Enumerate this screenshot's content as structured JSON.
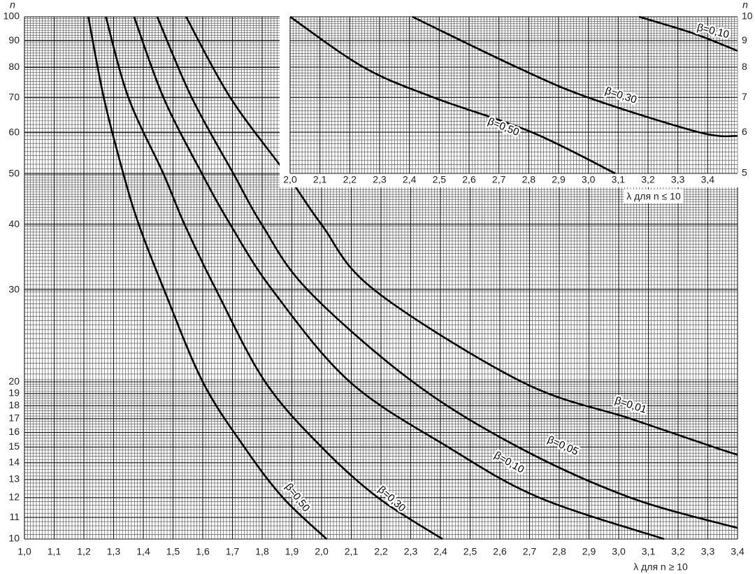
{
  "chart_data": [
    {
      "type": "line",
      "log_y": true,
      "grid": true,
      "y_label": "n",
      "x_label": "λ для n ≥ 10",
      "xlim": [
        1.0,
        3.4
      ],
      "ylim": [
        10,
        100
      ],
      "xticks": [
        {
          "value": 1.0,
          "label": "1,0"
        },
        {
          "value": 1.1,
          "label": "1,1"
        },
        {
          "value": 1.2,
          "label": "1,2"
        },
        {
          "value": 1.3,
          "label": "1,3"
        },
        {
          "value": 1.4,
          "label": "1,4"
        },
        {
          "value": 1.5,
          "label": "1,5"
        },
        {
          "value": 1.6,
          "label": "1,6"
        },
        {
          "value": 1.7,
          "label": "1,7"
        },
        {
          "value": 1.8,
          "label": "1,8"
        },
        {
          "value": 1.9,
          "label": "1,9"
        },
        {
          "value": 2.0,
          "label": "2,0"
        },
        {
          "value": 2.1,
          "label": "2,1"
        },
        {
          "value": 2.2,
          "label": "2,2"
        },
        {
          "value": 2.3,
          "label": "2,3"
        },
        {
          "value": 2.4,
          "label": "2,4"
        },
        {
          "value": 2.5,
          "label": "2,5"
        },
        {
          "value": 2.6,
          "label": "2,6"
        },
        {
          "value": 2.7,
          "label": "2,7"
        },
        {
          "value": 2.8,
          "label": "2,8"
        },
        {
          "value": 2.9,
          "label": "2,9"
        },
        {
          "value": 3.0,
          "label": "3,0"
        },
        {
          "value": 3.1,
          "label": "3,1"
        },
        {
          "value": 3.2,
          "label": "3,2"
        },
        {
          "value": 3.3,
          "label": "3,3"
        },
        {
          "value": 3.4,
          "label": "3,4"
        }
      ],
      "yticks": [
        10,
        11,
        12,
        13,
        14,
        15,
        16,
        17,
        18,
        19,
        20,
        30,
        40,
        50,
        60,
        70,
        80,
        90,
        100
      ],
      "series": [
        {
          "name": "β=0,50",
          "color": "#000000",
          "x": [
            1.215,
            1.267,
            1.333,
            1.385,
            1.47,
            1.6,
            1.74,
            1.87,
            2.017
          ],
          "values": [
            100,
            70,
            50,
            40,
            30,
            20,
            15,
            12,
            10
          ]
        },
        {
          "name": "β=0,30",
          "color": "#000000",
          "x": [
            1.274,
            1.35,
            1.468,
            1.539,
            1.645,
            1.81,
            2.0,
            2.19,
            2.407
          ],
          "values": [
            100,
            70,
            50,
            40,
            30,
            20,
            15,
            12,
            10
          ]
        },
        {
          "name": "β=0,10",
          "color": "#000000",
          "x": [
            1.369,
            1.468,
            1.598,
            1.693,
            1.834,
            2.095,
            2.426,
            2.733,
            3.153
          ],
          "values": [
            100,
            70,
            50,
            40,
            30,
            20,
            15,
            12,
            10
          ]
        },
        {
          "name": "β=0,05",
          "color": "#000000",
          "x": [
            1.447,
            1.563,
            1.704,
            1.799,
            1.953,
            2.307,
            2.662,
            3.04,
            3.4
          ],
          "values": [
            100,
            70,
            50,
            40,
            30,
            20,
            15,
            12,
            10.5
          ]
        },
        {
          "name": "β=0,01",
          "color": "#000000",
          "x": [
            1.544,
            1.693,
            1.882,
            2.0,
            2.177,
            2.674,
            3.04,
            3.32,
            3.4
          ],
          "values": [
            100,
            70,
            50,
            40,
            30,
            20,
            17,
            15,
            14.5
          ]
        }
      ]
    },
    {
      "type": "line",
      "log_y": true,
      "grid": true,
      "y_label": "n",
      "x_label": "λ для n ≤ 10",
      "xlim": [
        2.0,
        3.5
      ],
      "ylim": [
        5,
        10
      ],
      "xticks": [
        {
          "value": 2.0,
          "label": "2,0"
        },
        {
          "value": 2.1,
          "label": "2,1"
        },
        {
          "value": 2.2,
          "label": "2,2"
        },
        {
          "value": 2.3,
          "label": "2,3"
        },
        {
          "value": 2.4,
          "label": "2,4"
        },
        {
          "value": 2.5,
          "label": "2,5"
        },
        {
          "value": 2.6,
          "label": "2,6"
        },
        {
          "value": 2.7,
          "label": "2,7"
        },
        {
          "value": 2.8,
          "label": "2,8"
        },
        {
          "value": 2.9,
          "label": "2,9"
        },
        {
          "value": 3.0,
          "label": "3,0"
        },
        {
          "value": 3.1,
          "label": "3,1"
        },
        {
          "value": 3.2,
          "label": "3,2"
        },
        {
          "value": 3.3,
          "label": "3,3"
        },
        {
          "value": 3.4,
          "label": "3,4"
        }
      ],
      "yticks": [
        5,
        6,
        7,
        8,
        9,
        10
      ],
      "series": [
        {
          "name": "β=0,50",
          "color": "#000000",
          "x": [
            2.0,
            2.246,
            2.48,
            2.81,
            3.09
          ],
          "values": [
            10,
            8,
            7,
            6,
            5
          ]
        },
        {
          "name": "β=0,30",
          "color": "#000000",
          "x": [
            2.41,
            2.76,
            2.998,
            3.37,
            3.5
          ],
          "values": [
            10,
            8,
            7,
            6,
            5.9
          ]
        },
        {
          "name": "β=0,10",
          "color": "#000000",
          "x": [
            3.17,
            3.35,
            3.5
          ],
          "values": [
            10,
            9.3,
            8.6
          ]
        }
      ]
    }
  ]
}
